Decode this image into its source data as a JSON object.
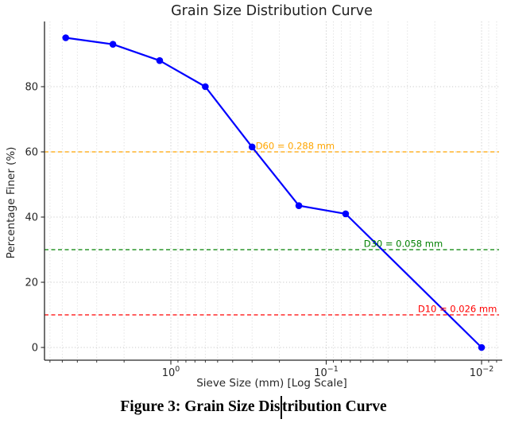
{
  "page": {
    "background": "#ffffff"
  },
  "chart": {
    "title": "Grain Size Distribution Curve",
    "title_color": "#1f1f1f",
    "axis_color": "#262626",
    "tick_label_color": "#262626",
    "grid_color": "#c9c9c9",
    "minor_grid_color": "#dadada",
    "plot_background": "#ffffff"
  },
  "chart_data": {
    "type": "line",
    "title": "Grain Size Distribution Curve",
    "xlabel": "Sieve Size (mm) [Log Scale]",
    "ylabel": "Percentage Finer (%)",
    "x_scale": "log",
    "x_axis_reversed": true,
    "xlim": [
      6.5,
      0.008
    ],
    "ylim": [
      -4,
      100
    ],
    "grid": "dotted",
    "legend": "none",
    "x": [
      4.75,
      2.36,
      1.18,
      0.6,
      0.3,
      0.15,
      0.075,
      0.01
    ],
    "y": [
      95,
      93,
      88,
      80,
      61.5,
      43.5,
      41,
      0
    ],
    "series": [
      {
        "name": "grain-size-curve",
        "color": "#0000ff",
        "marker": "circle",
        "line_width": 2.2,
        "marker_radius": 4.3
      }
    ],
    "x_ticks": [
      {
        "value": 1,
        "base": "10",
        "exponent": "0",
        "label": "10⁰"
      },
      {
        "value": 0.1,
        "base": "10",
        "exponent": "−1",
        "label": "10⁻¹"
      },
      {
        "value": 0.01,
        "base": "10",
        "exponent": "−2",
        "label": "10⁻²"
      }
    ],
    "y_ticks": [
      0,
      20,
      40,
      60,
      80
    ],
    "reference_lines": [
      {
        "name": "D60",
        "y": 60,
        "x_at": 0.288,
        "label": "D60 = 0.288 mm",
        "color": "#ffa500",
        "style": "dashed"
      },
      {
        "name": "D30",
        "y": 30,
        "x_at": 0.058,
        "label": "D30 = 0.058 mm",
        "color": "#008000",
        "style": "dashed"
      },
      {
        "name": "D10",
        "y": 10,
        "x_at": 0.026,
        "label": "D10 = 0.026 mm",
        "color": "#ff0000",
        "style": "dashed"
      }
    ]
  },
  "caption": {
    "text": "Figure 3: Grain Size Distribution Curve",
    "before_cursor": "Figure 3: Grain Size Dis",
    "after_cursor": "tribution Curve"
  }
}
